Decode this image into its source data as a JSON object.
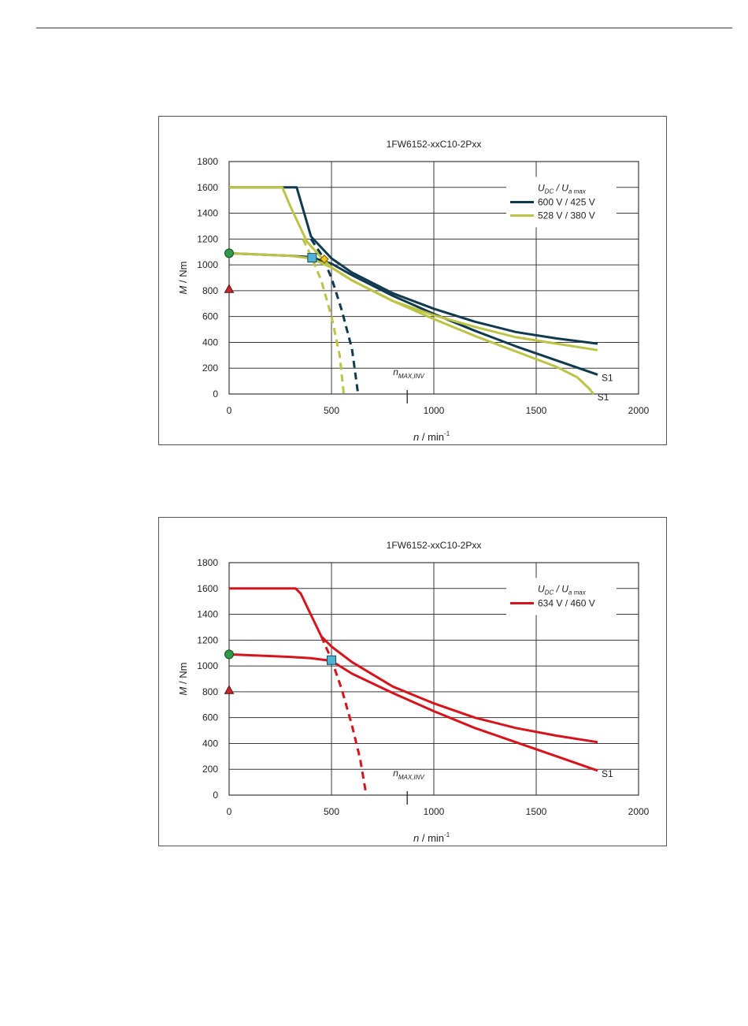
{
  "colors": {
    "dark_blue": "#123a4f",
    "yellow_green": "#bcc445",
    "red": "#d7141c",
    "green_marker": "#2d9a45",
    "red_marker": "#c8262b",
    "cyan_marker": "#4fb3d4",
    "yellow_marker": "#f0c419",
    "grid": "#3a3a3a"
  },
  "chart_data": [
    {
      "type": "line",
      "title": "1FW6152-xxC10-2Pxx",
      "xlabel_main": "n",
      "xlabel_unit": " / min",
      "xlabel_sup": "-1",
      "ylabel_main": "M",
      "ylabel_unit": " / Nm",
      "xlim": [
        0,
        2000
      ],
      "ylim": [
        0,
        1800
      ],
      "xticks": [
        0,
        500,
        1000,
        1500,
        2000
      ],
      "yticks": [
        0,
        200,
        400,
        600,
        800,
        1000,
        1200,
        1400,
        1600,
        1800
      ],
      "grid": true,
      "legend_position": "top-right",
      "legend_header": {
        "u_dc": "U",
        "u_dc_sub": "DC",
        "sep": " / ",
        "u_a": "U",
        "u_a_sub": "a max"
      },
      "nmax_inv": {
        "x": 870,
        "label": "n",
        "label_sub": "MAX,INV"
      },
      "series": [
        {
          "name": "600 V / 425 V",
          "color": "#123a4f",
          "style": "solid",
          "x": [
            0,
            300,
            330,
            400,
            500,
            600,
            800,
            1000,
            1200,
            1400,
            1600,
            1800
          ],
          "y": [
            1600,
            1600,
            1600,
            1220,
            1050,
            940,
            780,
            660,
            560,
            480,
            430,
            390
          ]
        },
        {
          "name": "",
          "color": "#123a4f",
          "style": "solid",
          "end_label": "S1",
          "x": [
            0,
            300,
            400,
            500,
            600,
            800,
            1000,
            1200,
            1400,
            1600,
            1800
          ],
          "y": [
            1090,
            1070,
            1060,
            1010,
            920,
            760,
            620,
            490,
            370,
            260,
            150
          ]
        },
        {
          "name": "",
          "color": "#123a4f",
          "style": "dashed",
          "x": [
            400,
            450,
            500,
            550,
            600,
            630
          ],
          "y": [
            1200,
            1080,
            900,
            650,
            350,
            0
          ]
        },
        {
          "name": "528 V / 380 V",
          "color": "#bcc445",
          "style": "solid",
          "x": [
            0,
            260,
            300,
            380,
            460,
            500,
            600,
            800,
            1000,
            1200,
            1400,
            1600,
            1800
          ],
          "y": [
            1600,
            1600,
            1450,
            1180,
            1040,
            980,
            880,
            720,
            610,
            520,
            440,
            390,
            340
          ]
        },
        {
          "name": "",
          "color": "#bcc445",
          "style": "solid",
          "end_label": "S1",
          "x": [
            0,
            300,
            400,
            500,
            600,
            800,
            1000,
            1200,
            1400,
            1600,
            1700,
            1760,
            1780
          ],
          "y": [
            1090,
            1070,
            1050,
            980,
            880,
            720,
            580,
            450,
            330,
            210,
            130,
            40,
            0
          ]
        },
        {
          "name": "",
          "color": "#bcc445",
          "style": "dashed",
          "x": [
            360,
            400,
            450,
            500,
            540,
            560
          ],
          "y": [
            1200,
            1070,
            880,
            600,
            300,
            0
          ]
        }
      ],
      "markers": [
        {
          "shape": "circle",
          "color": "#2d9a45",
          "x": 0,
          "y": 1090
        },
        {
          "shape": "triangle",
          "color": "#c8262b",
          "x": 0,
          "y": 810
        },
        {
          "shape": "square",
          "color": "#4fb3d4",
          "x": 405,
          "y": 1055
        },
        {
          "shape": "diamond",
          "color": "#f0c419",
          "x": 465,
          "y": 1045
        }
      ]
    },
    {
      "type": "line",
      "title": "1FW6152-xxC10-2Pxx",
      "xlabel_main": "n",
      "xlabel_unit": " / min",
      "xlabel_sup": "-1",
      "ylabel_main": "M",
      "ylabel_unit": " / Nm",
      "xlim": [
        0,
        2000
      ],
      "ylim": [
        0,
        1800
      ],
      "xticks": [
        0,
        500,
        1000,
        1500,
        2000
      ],
      "yticks": [
        0,
        200,
        400,
        600,
        800,
        1000,
        1200,
        1400,
        1600,
        1800
      ],
      "grid": true,
      "legend_position": "top-right",
      "legend_header": {
        "u_dc": "U",
        "u_dc_sub": "DC",
        "sep": " / ",
        "u_a": "U",
        "u_a_sub": "a max"
      },
      "nmax_inv": {
        "x": 870,
        "label": "n",
        "label_sub": "MAX,INV"
      },
      "series": [
        {
          "name": "634 V / 460 V",
          "color": "#d7141c",
          "style": "solid",
          "x": [
            0,
            325,
            350,
            450,
            500,
            600,
            800,
            1000,
            1200,
            1400,
            1600,
            1800
          ],
          "y": [
            1600,
            1600,
            1560,
            1230,
            1150,
            1030,
            840,
            710,
            600,
            520,
            460,
            410
          ]
        },
        {
          "name": "",
          "color": "#d7141c",
          "style": "solid",
          "end_label": "S1",
          "x": [
            0,
            300,
            400,
            500,
            600,
            800,
            1000,
            1200,
            1400,
            1600,
            1800
          ],
          "y": [
            1090,
            1070,
            1060,
            1040,
            940,
            790,
            650,
            520,
            410,
            300,
            190
          ]
        },
        {
          "name": "",
          "color": "#d7141c",
          "style": "dashed",
          "x": [
            450,
            500,
            550,
            600,
            640,
            670
          ],
          "y": [
            1230,
            1050,
            820,
            540,
            280,
            0
          ]
        }
      ],
      "markers": [
        {
          "shape": "circle",
          "color": "#2d9a45",
          "x": 0,
          "y": 1090
        },
        {
          "shape": "triangle",
          "color": "#c8262b",
          "x": 0,
          "y": 810
        },
        {
          "shape": "square",
          "color": "#4fb3d4",
          "x": 500,
          "y": 1045
        }
      ]
    }
  ]
}
